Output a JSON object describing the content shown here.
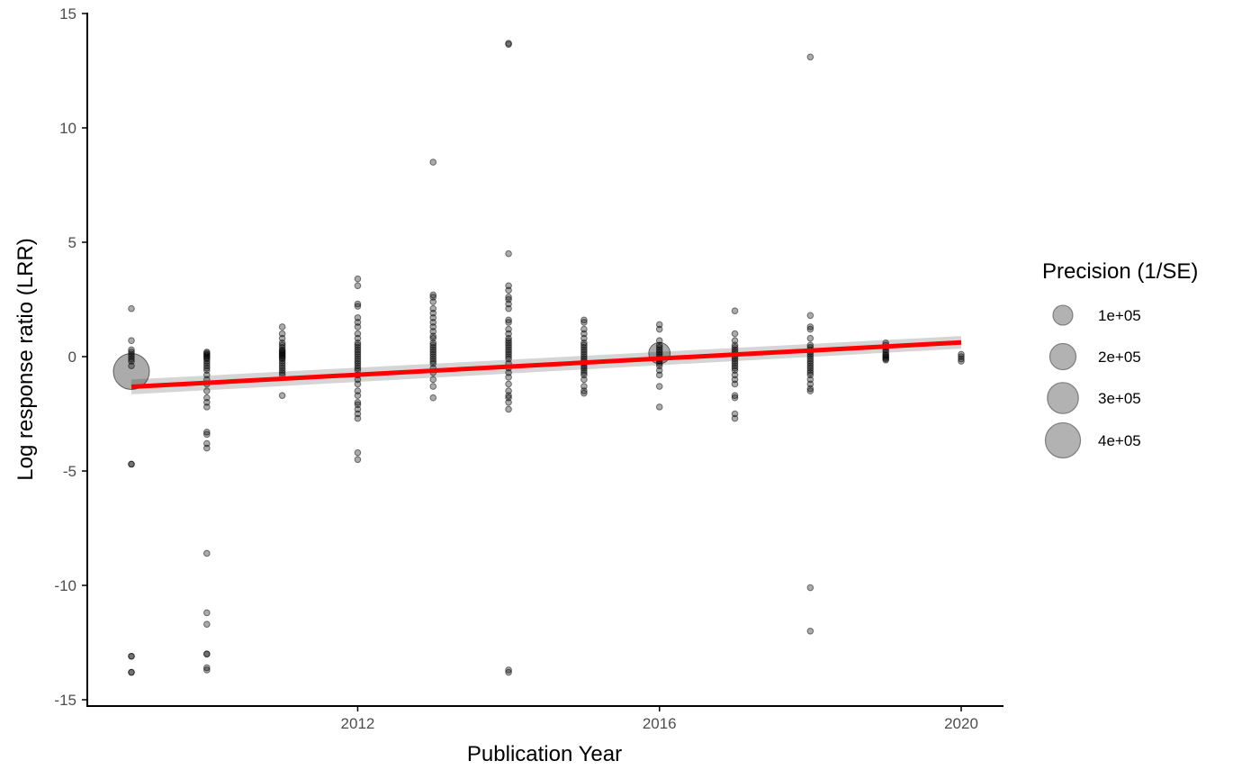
{
  "chart_data": {
    "type": "scatter",
    "title": "",
    "xlabel": "Publication Year",
    "ylabel": "Log response ratio (LRR)",
    "xlim": [
      2008.7,
      2020.55
    ],
    "ylim": [
      -15.1,
      15.1
    ],
    "x_ticks": [
      2012,
      2016,
      2020
    ],
    "y_ticks": [
      -15,
      -10,
      -5,
      0,
      5,
      10,
      15
    ],
    "grid": false,
    "point_color": "#000000",
    "point_opacity": 0.33,
    "fit_color": "#ff0000",
    "ribbon_color": "#bfbfbf",
    "legend": {
      "title": "Precision (1/SE)",
      "placement": "right",
      "entries": [
        {
          "label": "1e+05",
          "precision": 100000
        },
        {
          "label": "2e+05",
          "precision": 200000
        },
        {
          "label": "3e+05",
          "precision": 300000
        },
        {
          "label": "4e+05",
          "precision": 400000
        }
      ]
    },
    "fit_line": {
      "x": [
        2009,
        2020
      ],
      "y": [
        -1.32,
        0.62
      ],
      "ci_lower": [
        -1.65,
        0.35
      ],
      "ci_upper": [
        -1.0,
        0.9
      ]
    },
    "series": [
      {
        "year": 2009,
        "y": [
          2.1,
          0.7,
          0.3,
          0.2,
          0.1,
          0.0,
          -0.1,
          -0.2,
          -0.4,
          -4.7,
          -4.7,
          -13.1,
          -13.1,
          -13.8,
          -13.8
        ],
        "big": [
          {
            "y": -0.65,
            "precision": 420000
          }
        ]
      },
      {
        "year": 2010,
        "y": [
          0.2,
          0.15,
          0.1,
          0.05,
          0.0,
          -0.05,
          -0.1,
          -0.2,
          -0.3,
          -0.4,
          -0.5,
          -0.6,
          -0.8,
          -1.0,
          -1.2,
          -1.5,
          -1.8,
          -2.0,
          -2.2,
          -3.3,
          -3.4,
          -3.8,
          -4.0,
          -8.6,
          -11.2,
          -11.7,
          -13.0,
          -13.0,
          -13.6,
          -13.7
        ]
      },
      {
        "year": 2011,
        "y": [
          1.3,
          1.0,
          0.8,
          0.6,
          0.5,
          0.4,
          0.3,
          0.25,
          0.2,
          0.15,
          0.1,
          0.05,
          0.0,
          -0.05,
          -0.1,
          -0.2,
          -0.3,
          -0.4,
          -0.5,
          -0.6,
          -0.7,
          -0.8,
          -1.7
        ]
      },
      {
        "year": 2012,
        "y": [
          3.4,
          3.1,
          2.3,
          2.2,
          1.7,
          1.5,
          1.3,
          1.0,
          0.8,
          0.6,
          0.5,
          0.4,
          0.3,
          0.2,
          0.1,
          0.0,
          -0.1,
          -0.2,
          -0.3,
          -0.4,
          -0.5,
          -0.6,
          -0.8,
          -1.0,
          -1.2,
          -1.5,
          -1.7,
          -2.0,
          -2.1,
          -2.3,
          -2.5,
          -2.7,
          -4.2,
          -4.5
        ]
      },
      {
        "year": 2013,
        "y": [
          8.5,
          2.7,
          2.6,
          2.4,
          2.1,
          1.9,
          1.7,
          1.5,
          1.3,
          1.1,
          0.9,
          0.8,
          0.6,
          0.5,
          0.4,
          0.3,
          0.2,
          0.1,
          0.0,
          -0.1,
          -0.2,
          -0.3,
          -0.5,
          -0.7,
          -1.0,
          -1.3,
          -1.8
        ]
      },
      {
        "year": 2014,
        "y": [
          13.7,
          13.65,
          4.5,
          3.1,
          2.9,
          2.6,
          2.5,
          2.3,
          2.1,
          1.6,
          1.5,
          1.2,
          1.0,
          0.8,
          0.7,
          0.6,
          0.5,
          0.4,
          0.3,
          0.2,
          0.1,
          0.0,
          -0.1,
          -0.3,
          -0.5,
          -0.7,
          -0.9,
          -1.2,
          -1.5,
          -1.7,
          -1.8,
          -2.0,
          -2.3,
          -13.7,
          -13.8
        ]
      },
      {
        "year": 2015,
        "y": [
          1.6,
          1.5,
          1.2,
          1.0,
          0.8,
          0.6,
          0.5,
          0.4,
          0.3,
          0.2,
          0.1,
          0.0,
          -0.1,
          -0.2,
          -0.3,
          -0.4,
          -0.5,
          -0.6,
          -0.7,
          -0.8,
          -1.0,
          -1.3,
          -1.5,
          -1.6
        ]
      },
      {
        "year": 2016,
        "y": [
          1.4,
          1.2,
          0.7,
          0.5,
          0.4,
          0.3,
          0.2,
          0.1,
          0.0,
          -0.1,
          -0.2,
          -0.3,
          -0.4,
          -0.6,
          -0.8,
          -1.3,
          -2.2
        ],
        "big": [
          {
            "y": 0.15,
            "precision": 120000
          }
        ]
      },
      {
        "year": 2017,
        "y": [
          2.0,
          1.0,
          0.7,
          0.5,
          0.4,
          0.3,
          0.2,
          0.1,
          0.0,
          -0.1,
          -0.2,
          -0.3,
          -0.4,
          -0.5,
          -0.6,
          -0.8,
          -1.0,
          -1.2,
          -1.7,
          -1.8,
          -2.5,
          -2.7
        ]
      },
      {
        "year": 2018,
        "y": [
          13.1,
          1.8,
          1.3,
          1.2,
          0.8,
          0.5,
          0.4,
          0.3,
          0.2,
          0.1,
          0.0,
          -0.1,
          -0.2,
          -0.3,
          -0.4,
          -0.5,
          -0.6,
          -0.7,
          -0.8,
          -1.0,
          -1.2,
          -1.4,
          -1.5,
          -10.1,
          -12.0
        ]
      },
      {
        "year": 2019,
        "y": [
          0.6,
          0.5,
          0.4,
          0.3,
          0.2,
          0.1,
          0.05,
          0.0,
          -0.05,
          -0.1,
          -0.15
        ]
      },
      {
        "year": 2020,
        "y": [
          0.1,
          0.0,
          -0.1,
          -0.2
        ]
      }
    ]
  }
}
